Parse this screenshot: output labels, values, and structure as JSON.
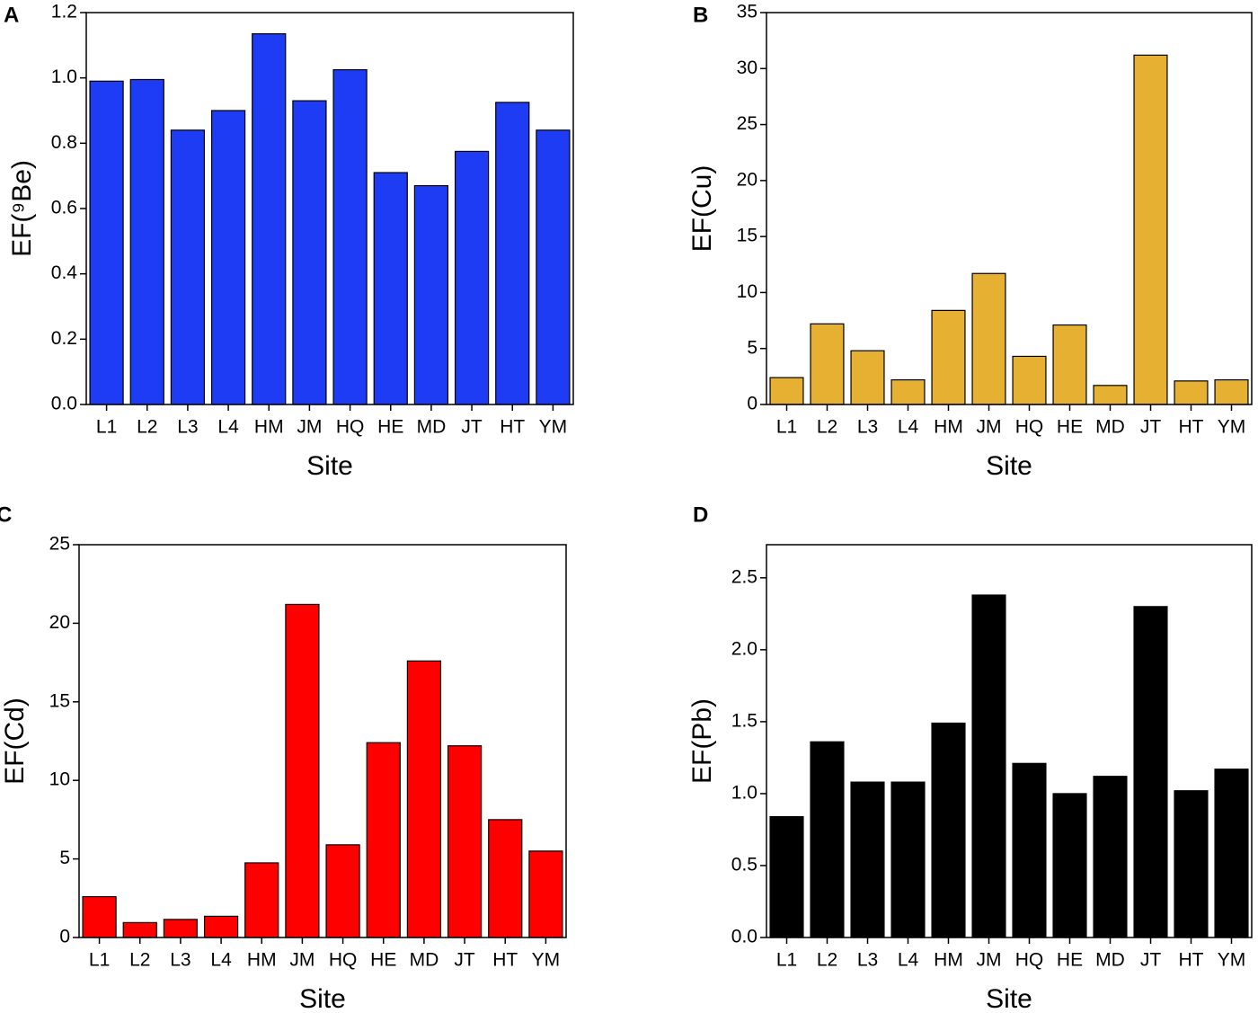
{
  "chart_data": [
    {
      "type": "bar",
      "panel": "A",
      "ylabel": "EF(⁹Be)",
      "xlabel": "Site",
      "color": "#1f3cf5",
      "categories": [
        "L1",
        "L2",
        "L3",
        "L4",
        "HM",
        "JM",
        "HQ",
        "HE",
        "MD",
        "JT",
        "HT",
        "YM"
      ],
      "values": [
        0.99,
        0.995,
        0.84,
        0.9,
        1.135,
        0.93,
        1.025,
        0.71,
        0.67,
        0.775,
        0.925,
        0.84
      ],
      "ylim": [
        0,
        1.2
      ],
      "yticks": [
        {
          "value": 0,
          "label": "0.0"
        },
        0.2,
        0.4,
        0.6,
        0.8,
        {
          "value": 1,
          "label": "1.0"
        },
        1.2
      ]
    },
    {
      "type": "bar",
      "panel": "B",
      "ylabel": "EF(Cu)",
      "xlabel": "Site",
      "color": "#e6b033",
      "categories": [
        "L1",
        "L2",
        "L3",
        "L4",
        "HM",
        "JM",
        "HQ",
        "HE",
        "MD",
        "JT",
        "HT",
        "YM"
      ],
      "values": [
        2.4,
        7.2,
        4.8,
        2.2,
        8.4,
        11.7,
        4.3,
        7.1,
        1.7,
        31.2,
        2.1,
        2.2
      ],
      "ylim": [
        0,
        35
      ],
      "yticks": [
        0,
        5,
        10,
        15,
        20,
        25,
        30,
        35
      ]
    },
    {
      "type": "bar",
      "panel": "C",
      "ylabel": "EF(Cd)",
      "xlabel": "Site",
      "color": "#ff0000",
      "categories": [
        "L1",
        "L2",
        "L3",
        "L4",
        "HM",
        "JM",
        "HQ",
        "HE",
        "MD",
        "JT",
        "HT",
        "YM"
      ],
      "values": [
        2.6,
        0.95,
        1.15,
        1.35,
        4.75,
        21.2,
        5.9,
        12.4,
        17.6,
        12.2,
        7.5,
        5.5
      ],
      "ylim": [
        0,
        25
      ],
      "yticks": [
        0,
        5,
        10,
        15,
        20,
        25
      ]
    },
    {
      "type": "bar",
      "panel": "D",
      "ylabel": "EF(Pb)",
      "xlabel": "Site",
      "color": "#000000",
      "categories": [
        "L1",
        "L2",
        "L3",
        "L4",
        "HM",
        "JM",
        "HQ",
        "HE",
        "MD",
        "JT",
        "HT",
        "YM"
      ],
      "values": [
        0.84,
        1.36,
        1.08,
        1.08,
        1.49,
        2.38,
        1.21,
        1.0,
        1.12,
        2.3,
        1.02,
        1.17
      ],
      "ylim": [
        0,
        2.73
      ],
      "yticks": [
        {
          "value": 0,
          "label": "0.0"
        },
        0.5,
        {
          "value": 1,
          "label": "1.0"
        },
        1.5,
        {
          "value": 2,
          "label": "2.0"
        },
        2.5
      ]
    }
  ]
}
